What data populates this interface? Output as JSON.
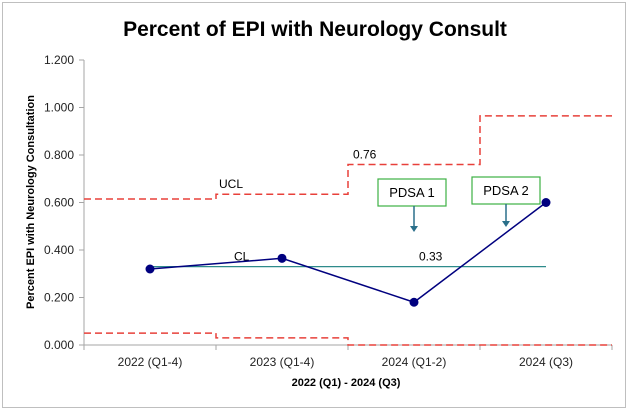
{
  "chart_data": {
    "type": "line",
    "title": "Percent of EPI with Neurology Consult",
    "xlabel": "2022 (Q1) - 2024 (Q3)",
    "ylabel": "Percent EPI with Neurology Consultation",
    "ylim": [
      0,
      1.2
    ],
    "yticks": [
      "0.000",
      "0.200",
      "0.400",
      "0.600",
      "0.800",
      "1.000",
      "1.200"
    ],
    "categories": [
      "2022 (Q1-4)",
      "2023 (Q1-4)",
      "2024 (Q1-2)",
      "2024 (Q3)"
    ],
    "series": [
      {
        "values": [
          0.32,
          0.365,
          0.18,
          0.6
        ],
        "color": "#00007f"
      }
    ],
    "center_line": {
      "label": "CL",
      "value": 0.33,
      "value_label": "0.33",
      "color": "#2e8b8b"
    },
    "ucl": {
      "label": "UCL",
      "values": [
        0.615,
        0.635,
        0.76,
        0.965
      ],
      "value_label": "0.76",
      "color": "#e8403a"
    },
    "lcl": {
      "values": [
        0.05,
        0.03,
        0.0,
        0.0
      ],
      "color": "#e8403a"
    },
    "grid": false,
    "annotations": [
      {
        "label": "PDSA 1",
        "category_index": 2
      },
      {
        "label": "PDSA 2",
        "category_index": 3
      }
    ]
  }
}
